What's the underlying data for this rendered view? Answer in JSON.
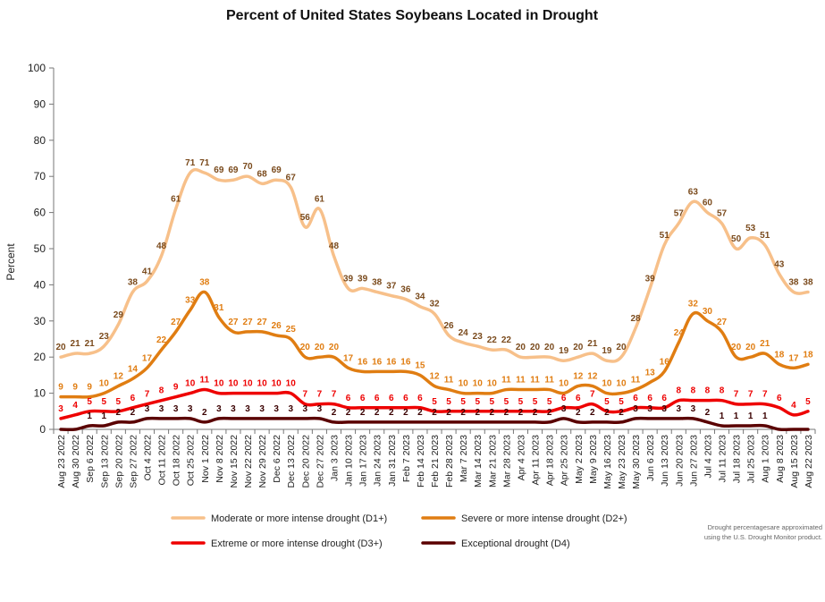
{
  "chart_data": {
    "type": "line",
    "title": "Percent of United States Soybeans Located in Drought",
    "ylabel": "Percent",
    "xlabel": "",
    "ylim": [
      0,
      100
    ],
    "yticks": [
      0,
      10,
      20,
      30,
      40,
      50,
      60,
      70,
      80,
      90,
      100
    ],
    "grid": false,
    "legend_position": "bottom",
    "categories": [
      "Aug 23 2022",
      "Aug 30 2022",
      "Sep 6 2022",
      "Sep 13 2022",
      "Sep 20 2022",
      "Sep 27 2022",
      "Oct 4 2022",
      "Oct 11 2022",
      "Oct 18 2022",
      "Oct 25 2022",
      "Nov 1 2022",
      "Nov 8 2022",
      "Nov 15 2022",
      "Nov 22 2022",
      "Nov 29 2022",
      "Dec 6 2022",
      "Dec 13 2022",
      "Dec 20 2022",
      "Dec 27 2022",
      "Jan 3 2023",
      "Jan 10 2023",
      "Jan 17 2023",
      "Jan 24 2023",
      "Jan 31 2023",
      "Feb 7 2023",
      "Feb 14 2023",
      "Feb 21 2023",
      "Feb 28 2023",
      "Mar 7 2023",
      "Mar 14 2023",
      "Mar 21 2023",
      "Mar 28 2023",
      "Apr 4 2023",
      "Apr 11 2023",
      "Apr 18 2023",
      "Apr 25 2023",
      "May 2 2023",
      "May 9 2023",
      "May 16 2023",
      "May 23 2023",
      "May 30 2023",
      "Jun 6 2023",
      "Jun 13 2023",
      "Jun 20 2023",
      "Jun 27 2023",
      "Jul 4 2023",
      "Jul 11 2023",
      "Jul 18 2023",
      "Jul 25 2023",
      "Aug 1 2023",
      "Aug 8 2023",
      "Aug 15 2023",
      "Aug 22 2023"
    ],
    "xtick_labels": [
      "Aug 23 2022",
      "Aug 30 2022",
      "Sep 6 2022",
      "Sep 13 2022",
      "Sep 20 2022",
      "Sep 27 2022",
      "Oct 4 2022",
      "Oct 11 2022",
      "Oct 18 2022",
      "Oct 25 2022",
      "Nov 1 2022",
      "Nov 8 2022",
      "Nov 15 2022",
      "Nov 22 2022",
      "Nov 29 2022",
      "Dec 6 2022",
      "Dec 13 2022",
      "Dec 20 2022",
      "Dec 27 2022",
      "Jan 3 2023",
      "Jan 10 2023",
      "Jan 17 2023",
      "Jan 24 2023",
      "Jan 31 2023",
      "Feb 7 2023",
      "Feb 14 2023",
      "Feb 21 2023",
      "Feb 28 2023",
      "Mar 7 2023",
      "Mar 14 2023",
      "Mar 21 2023",
      "Mar 28 2023",
      "Apr 4 2023",
      "Apr 11 2023",
      "Apr 18 2023",
      "Apr 25 2023",
      "May 2 2023",
      "May 9 2023",
      "May 16 2023",
      "May 23 2023",
      "May 30 2023",
      "Jun 6 2023",
      "Jun 13 2023",
      "Jun 20 2023",
      "Jun 27 2023",
      "Jul 4 2023",
      "Jul 11 2023",
      "Jul 18 2023",
      "Jul 25 2023",
      "Aug 1 2023",
      "Aug 8 2023",
      "Aug 15 2023",
      "Aug 22 2023"
    ],
    "series": [
      {
        "name": "Moderate or more intense drought (D1+)",
        "color": "#f7c08a",
        "label_color": "#7a4a1c",
        "values": [
          20,
          21,
          21,
          23,
          29,
          38,
          41,
          48,
          61,
          71,
          71,
          69,
          69,
          70,
          68,
          69,
          67,
          56,
          61,
          48,
          39,
          39,
          38,
          37,
          36,
          34,
          32,
          26,
          24,
          23,
          22,
          22,
          20,
          20,
          20,
          19,
          20,
          21,
          19,
          20,
          28,
          39,
          51,
          57,
          63,
          60,
          57,
          50,
          53,
          51,
          43,
          38,
          38
        ]
      },
      {
        "name": "Severe or more intense drought (D2+)",
        "color": "#e07d12",
        "label_color": "#e07d12",
        "values": [
          9,
          9,
          9,
          10,
          12,
          14,
          17,
          22,
          27,
          33,
          38,
          31,
          27,
          27,
          27,
          26,
          25,
          20,
          20,
          20,
          17,
          16,
          16,
          16,
          16,
          15,
          12,
          11,
          10,
          10,
          10,
          11,
          11,
          11,
          11,
          10,
          12,
          12,
          10,
          10,
          11,
          13,
          16,
          24,
          32,
          30,
          27,
          20,
          20,
          21,
          18,
          17,
          18
        ]
      },
      {
        "name": "Extreme or more intense drought (D3+)",
        "color": "#ee0000",
        "label_color": "#ee0000",
        "values": [
          3,
          4,
          5,
          5,
          5,
          6,
          7,
          8,
          9,
          10,
          11,
          10,
          10,
          10,
          10,
          10,
          10,
          7,
          7,
          7,
          6,
          6,
          6,
          6,
          6,
          6,
          5,
          5,
          5,
          5,
          5,
          5,
          5,
          5,
          5,
          6,
          6,
          7,
          5,
          5,
          6,
          6,
          6,
          8,
          8,
          8,
          8,
          7,
          7,
          7,
          6,
          4,
          5
        ]
      },
      {
        "name": "Exceptional drought (D4)",
        "color": "#5a0000",
        "label_color": "#3a0000",
        "values": [
          0,
          0,
          1,
          1,
          2,
          2,
          3,
          3,
          3,
          3,
          2,
          3,
          3,
          3,
          3,
          3,
          3,
          3,
          3,
          2,
          2,
          2,
          2,
          2,
          2,
          2,
          2,
          2,
          2,
          2,
          2,
          2,
          2,
          2,
          2,
          3,
          2,
          2,
          2,
          2,
          3,
          3,
          3,
          3,
          3,
          2,
          1,
          1,
          1,
          1,
          0,
          0,
          0
        ]
      }
    ],
    "legend_rows": [
      [
        0,
        1
      ],
      [
        2,
        3
      ]
    ],
    "note": [
      "Drought percentagesare approximated",
      "using the U.S. Drought Monitor product."
    ]
  }
}
